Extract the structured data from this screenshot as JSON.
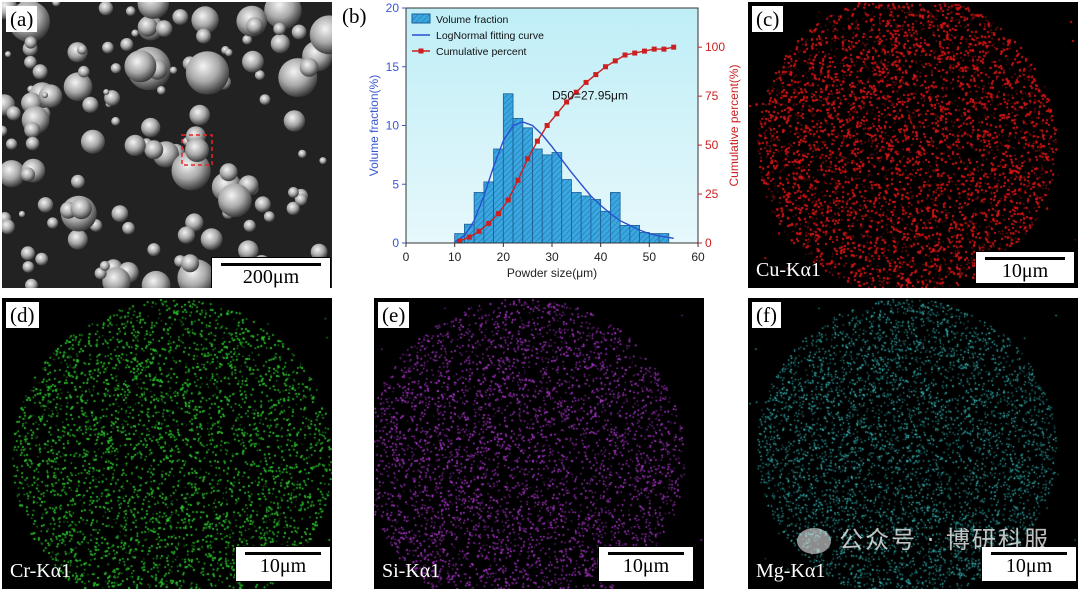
{
  "panels": {
    "a": {
      "label": "(a)",
      "scale": "200μm"
    },
    "b": {
      "label": "(b)"
    },
    "c": {
      "label": "(c)",
      "scale": "10μm",
      "element": "Cu-Kα1",
      "color": "#d41a1a"
    },
    "d": {
      "label": "(d)",
      "scale": "10μm",
      "element": "Cr-Kα1",
      "color": "#2fc72f"
    },
    "e": {
      "label": "(e)",
      "scale": "10μm",
      "element": "Si-Kα1",
      "color": "#b43ad6"
    },
    "f": {
      "label": "(f)",
      "scale": "10μm",
      "element": "Mg-Kα1",
      "color": "#3fd6d6"
    }
  },
  "watermark": "公众号 · 博研科服",
  "chart_data": {
    "type": "bar",
    "xlabel": "Powder size(μm)",
    "ylabel": "Volume fraction(%)",
    "y2label": "Cumulative percent(%)",
    "xlim": [
      0,
      60
    ],
    "ylim": [
      0,
      20
    ],
    "y2lim": [
      0,
      120
    ],
    "xticks": [
      0,
      10,
      20,
      30,
      40,
      50,
      60
    ],
    "yticks": [
      0,
      5,
      10,
      15,
      20
    ],
    "y2ticks": [
      0,
      25,
      50,
      75,
      100
    ],
    "annotation": "D50=27.95μm",
    "legend_position": "top-left",
    "colors": {
      "bars": "#3aa7e0",
      "fit": "#2a4fd0",
      "cumulative": "#cc1f1f",
      "background": "#e6f8fb"
    },
    "series": [
      {
        "name": "Volume fraction",
        "type": "bar",
        "x": [
          11,
          13,
          15,
          17,
          19,
          21,
          23,
          25,
          27,
          29,
          31,
          33,
          35,
          37,
          39,
          41,
          43,
          45,
          47,
          49,
          51,
          53
        ],
        "values": [
          0.8,
          1.6,
          4.3,
          5.2,
          8.0,
          12.7,
          10.6,
          9.8,
          8.0,
          7.5,
          7.7,
          5.4,
          4.3,
          4.0,
          3.7,
          2.7,
          4.3,
          1.5,
          1.5,
          0.9,
          0.8,
          0.8
        ]
      },
      {
        "name": "LogNormal fitting curve",
        "type": "line",
        "x": [
          10,
          12,
          14,
          16,
          18,
          20,
          22,
          24,
          26,
          28,
          30,
          32,
          34,
          36,
          38,
          40,
          42,
          44,
          46,
          48,
          50,
          52,
          55
        ],
        "values": [
          0.1,
          0.6,
          1.9,
          4.0,
          6.5,
          8.7,
          10.0,
          10.3,
          10.0,
          9.2,
          8.2,
          7.1,
          6.0,
          5.0,
          4.0,
          3.2,
          2.5,
          1.9,
          1.5,
          1.1,
          0.8,
          0.6,
          0.4
        ]
      },
      {
        "name": "Cumulative percent",
        "type": "line",
        "axis": "right",
        "x": [
          11,
          13,
          15,
          17,
          19,
          21,
          23,
          25,
          27,
          29,
          31,
          33,
          35,
          37,
          39,
          41,
          43,
          45,
          47,
          49,
          51,
          53,
          55
        ],
        "values": [
          1,
          3,
          6,
          10,
          15,
          22,
          32,
          43,
          52,
          60,
          66,
          72,
          77,
          82,
          86,
          90,
          93,
          96,
          97,
          98,
          99,
          99,
          100
        ]
      }
    ]
  }
}
